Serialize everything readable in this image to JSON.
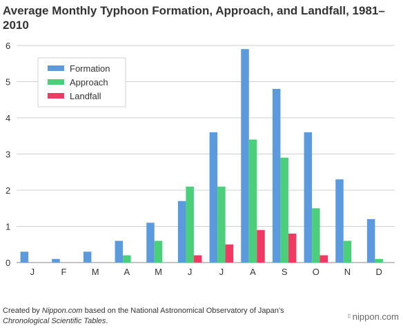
{
  "title": "Average Monthly Typhoon Formation, Approach, and Landfall, 1981–2010",
  "footer": {
    "prefix": "Created by ",
    "site": "Nippon.com",
    "middle": " based on the National Astronomical Observatory of Japan’s ",
    "publication": "Chronological Scientific Tables",
    "suffix": "."
  },
  "brand": "nippon.com",
  "colors": {
    "formation": "#5b9bdd",
    "approach": "#4ccf7a",
    "landfall": "#f03a63"
  },
  "chart_data": {
    "type": "bar",
    "title": "Average Monthly Typhoon Formation, Approach, and Landfall, 1981–2010",
    "categories": [
      "J",
      "F",
      "M",
      "A",
      "M",
      "J",
      "J",
      "A",
      "S",
      "O",
      "N",
      "D"
    ],
    "series": [
      {
        "name": "Formation",
        "color": "#5b9bdd",
        "values": [
          0.3,
          0.1,
          0.3,
          0.6,
          1.1,
          1.7,
          3.6,
          5.9,
          4.8,
          3.6,
          2.3,
          1.2
        ]
      },
      {
        "name": "Approach",
        "color": "#4ccf7a",
        "values": [
          0,
          0,
          0,
          0.2,
          0.6,
          2.1,
          2.1,
          3.4,
          2.9,
          1.5,
          0.6,
          0.1
        ]
      },
      {
        "name": "Landfall",
        "color": "#f03a63",
        "values": [
          0,
          0,
          0,
          0,
          0,
          0.2,
          0.5,
          0.9,
          0.8,
          0.2,
          0,
          0
        ]
      }
    ],
    "yticks": [
      0,
      1,
      2,
      3,
      4,
      5,
      6
    ],
    "ylim": [
      0,
      6
    ],
    "xlabel": "",
    "ylabel": "",
    "grid": "horizontal",
    "legend": "top-left"
  }
}
